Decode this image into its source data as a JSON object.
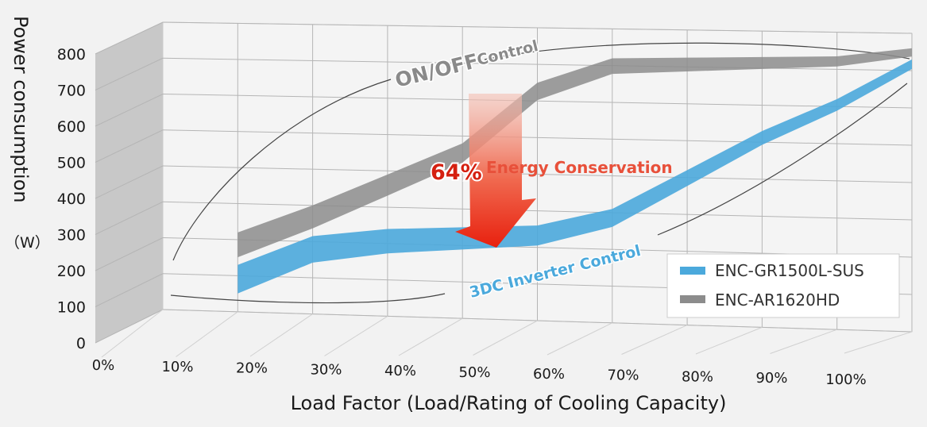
{
  "chart_data": {
    "type": "area",
    "xlabel": "Load Factor (Load/Rating of Cooling Capacity)",
    "ylabel": "Power consumption",
    "yunit": "（W）",
    "categories": [
      "0%",
      "10%",
      "20%",
      "30%",
      "40%",
      "50%",
      "60%",
      "70%",
      "80%",
      "90%",
      "100%"
    ],
    "yticks": [
      "0",
      "100",
      "200",
      "300",
      "400",
      "500",
      "600",
      "700",
      "800"
    ],
    "ylim": [
      0,
      800
    ],
    "grid": true,
    "series": [
      {
        "name": "ENC-AR1620HD",
        "label": "ON/OFF Control",
        "color": "#8c8c8c",
        "x": [
          10,
          20,
          30,
          40,
          50,
          60,
          70,
          80,
          90,
          100
        ],
        "values": [
          220,
          300,
          390,
          480,
          650,
          720,
          725,
          730,
          735,
          760
        ]
      },
      {
        "name": "ENC-GR1500L-SUS",
        "label": "3DC Inverter Control",
        "color": "#4ba9dc",
        "x": [
          10,
          20,
          30,
          40,
          50,
          60,
          70,
          80,
          90,
          100
        ],
        "values": [
          130,
          215,
          240,
          250,
          260,
          310,
          420,
          530,
          620,
          730
        ]
      }
    ],
    "annotations": {
      "percent": "64%",
      "text": "Energy Conservation",
      "onoff_main": "ON/OFF",
      "onoff_sub": "Control",
      "inverter": "3DC Inverter Control"
    },
    "legend_position": "bottom-right"
  }
}
